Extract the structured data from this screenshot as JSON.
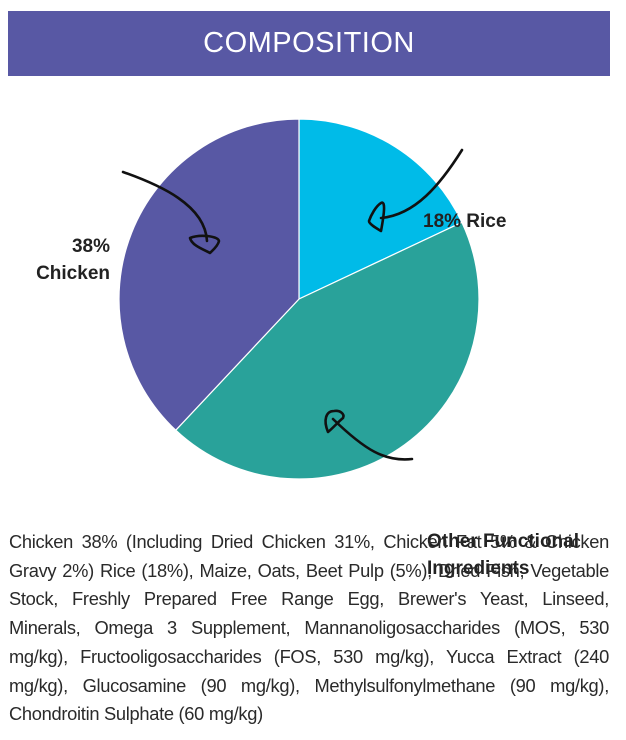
{
  "header": {
    "title": "COMPOSITION"
  },
  "colors": {
    "header_bg": "#5858a4",
    "chicken": "#5858a4",
    "rice": "#00bbe8",
    "other": "#29a29a"
  },
  "chart_data": {
    "type": "pie",
    "title": "COMPOSITION",
    "categories": [
      "Rice",
      "Other Functional Ingredients",
      "Chicken"
    ],
    "values": [
      18,
      44,
      38
    ],
    "unit": "%",
    "colors": [
      "#00bbe8",
      "#29a29a",
      "#5858a4"
    ],
    "start_angle": "12 o'clock, clockwise",
    "annotations": [
      {
        "text": "38% Chicken",
        "position": "upper-left",
        "arrow_to": "Chicken slice"
      },
      {
        "text": "18% Rice",
        "position": "upper-right",
        "arrow_to": "Rice slice"
      },
      {
        "text": "Other Functional Ingredients",
        "position": "lower-right",
        "arrow_to": "Other slice"
      }
    ],
    "legend": "none"
  },
  "labels": {
    "chicken_line1": "38%",
    "chicken_line2": "Chicken",
    "rice": "18% Rice",
    "other_line1": "Other Functional",
    "other_line2": "Ingredients"
  },
  "ingredients": {
    "text": "Chicken 38% (Including Dried Chicken 31%, Chicken Fat 5% & Chicken Gravy 2%) Rice (18%), Maize, Oats, Beet Pulp (5%), Dried Fish, Vegetable Stock, Freshly Prepared Free Range Egg, Brewer's Yeast, Linseed, Minerals, Omega 3 Supplement, Mannanoligosaccharides (MOS, 530 mg/kg), Fructooligosaccharides (FOS, 530 mg/kg), Yucca Extract (240 mg/kg), Glucosamine (90 mg/kg), Methylsulfonylmethane (90 mg/kg), Chondroitin Sulphate (60 mg/kg)"
  }
}
